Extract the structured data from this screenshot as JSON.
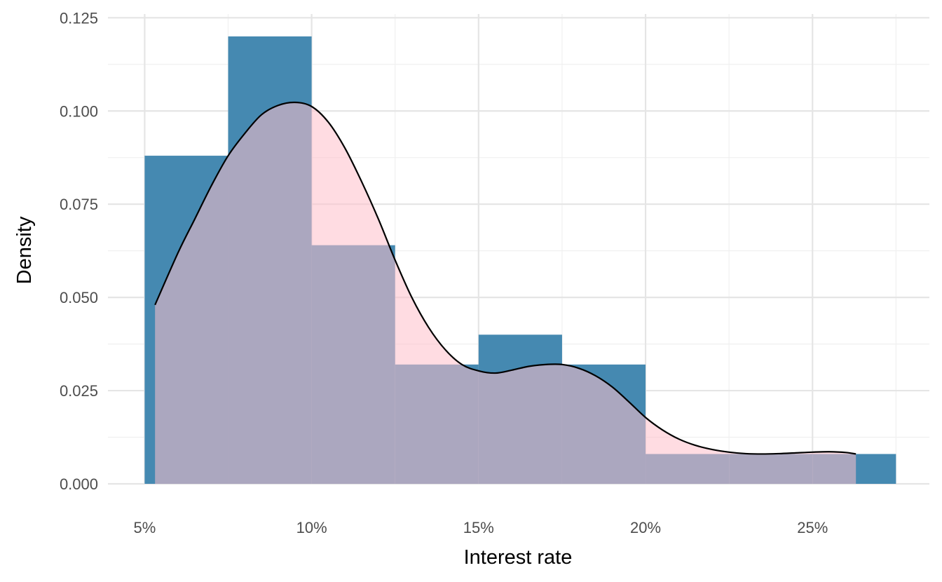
{
  "chart_data": {
    "type": "histogram",
    "xlabel": "Interest rate",
    "ylabel": "Density",
    "xlim": [
      3.9,
      28.5
    ],
    "ylim": [
      0,
      0.126
    ],
    "x_ticks": [
      {
        "value": 5,
        "label": "5%"
      },
      {
        "value": 10,
        "label": "10%"
      },
      {
        "value": 15,
        "label": "15%"
      },
      {
        "value": 20,
        "label": "20%"
      },
      {
        "value": 25,
        "label": "25%"
      }
    ],
    "y_ticks": [
      {
        "value": 0,
        "label": "0.000"
      },
      {
        "value": 0.025,
        "label": "0.025"
      },
      {
        "value": 0.05,
        "label": "0.050"
      },
      {
        "value": 0.075,
        "label": "0.075"
      },
      {
        "value": 0.1,
        "label": "0.100"
      },
      {
        "value": 0.125,
        "label": "0.125"
      }
    ],
    "minor_x": [
      7.5,
      12.5,
      17.5,
      22.5,
      27.5
    ],
    "minor_y": [
      0.0125,
      0.0375,
      0.0625,
      0.0875,
      0.1125
    ],
    "bins": [
      {
        "x0": 5,
        "x1": 7.5,
        "density": 0.088
      },
      {
        "x0": 7.5,
        "x1": 10,
        "density": 0.12
      },
      {
        "x0": 10,
        "x1": 12.5,
        "density": 0.064
      },
      {
        "x0": 12.5,
        "x1": 15,
        "density": 0.032
      },
      {
        "x0": 15,
        "x1": 17.5,
        "density": 0.04
      },
      {
        "x0": 17.5,
        "x1": 20,
        "density": 0.032
      },
      {
        "x0": 20,
        "x1": 22.5,
        "density": 0.008
      },
      {
        "x0": 22.5,
        "x1": 25,
        "density": 0.008
      },
      {
        "x0": 25,
        "x1": 27.5,
        "density": 0.008
      }
    ],
    "density_curve": [
      [
        5.31,
        0.048
      ],
      [
        6.0,
        0.062
      ],
      [
        6.5,
        0.071
      ],
      [
        7.0,
        0.08
      ],
      [
        7.5,
        0.088
      ],
      [
        8.0,
        0.094
      ],
      [
        8.5,
        0.099
      ],
      [
        9.0,
        0.1015
      ],
      [
        9.5,
        0.1023
      ],
      [
        10.0,
        0.1012
      ],
      [
        10.5,
        0.097
      ],
      [
        11.0,
        0.09
      ],
      [
        11.5,
        0.081
      ],
      [
        12.0,
        0.071
      ],
      [
        12.5,
        0.06
      ],
      [
        13.0,
        0.05
      ],
      [
        13.5,
        0.042
      ],
      [
        14.0,
        0.036
      ],
      [
        14.5,
        0.032
      ],
      [
        15.0,
        0.0303
      ],
      [
        15.5,
        0.0297
      ],
      [
        16.0,
        0.0305
      ],
      [
        16.5,
        0.0315
      ],
      [
        17.0,
        0.032
      ],
      [
        17.5,
        0.032
      ],
      [
        18.0,
        0.031
      ],
      [
        18.5,
        0.029
      ],
      [
        19.0,
        0.026
      ],
      [
        19.5,
        0.022
      ],
      [
        20.0,
        0.0178
      ],
      [
        20.5,
        0.0145
      ],
      [
        21.0,
        0.012
      ],
      [
        21.5,
        0.0103
      ],
      [
        22.0,
        0.0092
      ],
      [
        22.5,
        0.0085
      ],
      [
        23.0,
        0.0081
      ],
      [
        23.5,
        0.008
      ],
      [
        24.0,
        0.0081
      ],
      [
        24.5,
        0.0083
      ],
      [
        25.0,
        0.0085
      ],
      [
        25.5,
        0.0086
      ],
      [
        26.0,
        0.0084
      ],
      [
        26.3,
        0.008
      ]
    ],
    "colors": {
      "bar_fill": "#4589b1",
      "density_fill": "#ffc0cb",
      "density_fill_opacity": 0.55,
      "density_line": "#000000",
      "grid_major": "#e5e5e5",
      "grid_minor": "#f0f0f0"
    }
  }
}
